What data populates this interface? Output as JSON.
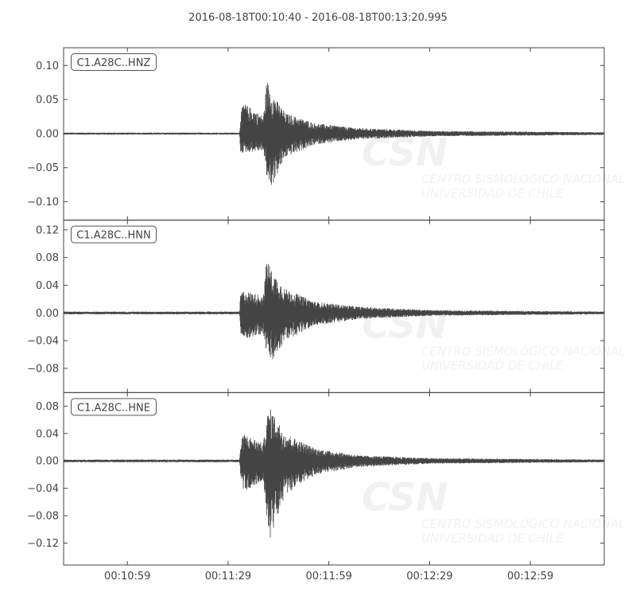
{
  "chart_data": {
    "type": "line",
    "title": "2016-08-18T00:10:40  -  2016-08-18T00:13:20.995",
    "xlim": [
      "00:10:40",
      "00:13:20.995"
    ],
    "x_ticks": [
      "00:10:59",
      "00:11:29",
      "00:11:59",
      "00:12:29",
      "00:12:59"
    ],
    "grid": false,
    "line_color": "#444444",
    "watermark": {
      "logo": "CSN",
      "line1": "CENTRO SISMOLÓGICO NACIONAL",
      "line2": "UNIVERSIDAD DE CHILE"
    },
    "traces": [
      {
        "name": "C1.A28C..HNZ",
        "ylim": [
          -0.127,
          0.126
        ],
        "y_ticks": [
          0.1,
          0.05,
          0.0,
          -0.05,
          -0.1
        ],
        "y_tick_labels": [
          "0.10",
          "0.05",
          "0.00",
          "−0.05",
          "−0.10"
        ],
        "envelope": [
          [
            "00:10:40",
            0.0015,
            -0.0015
          ],
          [
            "00:11:32.4",
            0.0015,
            -0.0015
          ],
          [
            "00:11:32.7",
            0.03,
            -0.03
          ],
          [
            "00:11:33.6",
            0.045,
            -0.028
          ],
          [
            "00:11:39.5",
            0.025,
            -0.025
          ],
          [
            "00:11:40.5",
            0.08,
            -0.065
          ],
          [
            "00:11:42",
            0.06,
            -0.078
          ],
          [
            "00:11:46",
            0.03,
            -0.035
          ],
          [
            "00:11:55",
            0.015,
            -0.016
          ],
          [
            "00:12:08",
            0.008,
            -0.008
          ],
          [
            "00:12:30",
            0.004,
            -0.004
          ],
          [
            "00:13:20.995",
            0.002,
            -0.002
          ]
        ]
      },
      {
        "name": "C1.A28C..HNN",
        "ylim": [
          -0.115,
          0.134
        ],
        "y_ticks": [
          0.12,
          0.08,
          0.04,
          0.0,
          -0.04,
          -0.08
        ],
        "y_tick_labels": [
          "0.12",
          "0.08",
          "0.04",
          "0.00",
          "−0.04",
          "−0.08"
        ],
        "envelope": [
          [
            "00:10:40",
            0.002,
            -0.002
          ],
          [
            "00:11:32.4",
            0.002,
            -0.002
          ],
          [
            "00:11:32.7",
            0.03,
            -0.03
          ],
          [
            "00:11:33.6",
            0.032,
            -0.038
          ],
          [
            "00:11:39.5",
            0.025,
            -0.03
          ],
          [
            "00:11:40.5",
            0.082,
            -0.06
          ],
          [
            "00:11:42",
            0.06,
            -0.072
          ],
          [
            "00:11:46",
            0.035,
            -0.04
          ],
          [
            "00:11:55",
            0.016,
            -0.018
          ],
          [
            "00:12:08",
            0.009,
            -0.009
          ],
          [
            "00:12:30",
            0.004,
            -0.004
          ],
          [
            "00:13:20.995",
            0.002,
            -0.002
          ]
        ]
      },
      {
        "name": "C1.A28C..HNE",
        "ylim": [
          -0.152,
          0.0998
        ],
        "y_ticks": [
          0.08,
          0.04,
          0.0,
          -0.04,
          -0.08,
          -0.12
        ],
        "y_tick_labels": [
          "0.08",
          "0.04",
          "0.00",
          "−0.04",
          "−0.08",
          "−0.12"
        ],
        "envelope": [
          [
            "00:10:40",
            0.002,
            -0.002
          ],
          [
            "00:11:32.4",
            0.002,
            -0.002
          ],
          [
            "00:11:32.7",
            0.025,
            -0.02
          ],
          [
            "00:11:33.6",
            0.04,
            -0.045
          ],
          [
            "00:11:39.5",
            0.025,
            -0.03
          ],
          [
            "00:11:40.5",
            0.065,
            -0.09
          ],
          [
            "00:11:41.5",
            0.077,
            -0.113
          ],
          [
            "00:11:46",
            0.04,
            -0.05
          ],
          [
            "00:11:55",
            0.018,
            -0.02
          ],
          [
            "00:12:08",
            0.008,
            -0.009
          ],
          [
            "00:12:30",
            0.004,
            -0.004
          ],
          [
            "00:13:20.995",
            0.002,
            -0.002
          ]
        ]
      }
    ]
  }
}
